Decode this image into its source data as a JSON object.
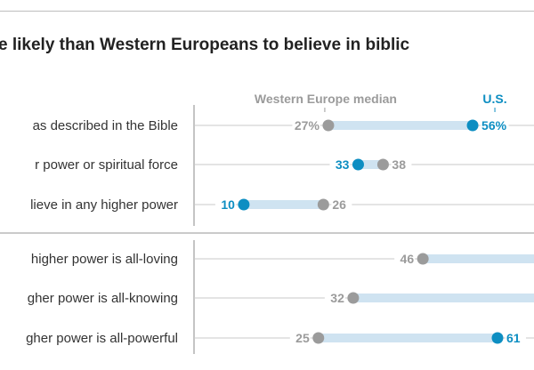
{
  "title": "e likely than Western Europeans to believe in biblic",
  "chart_data": {
    "type": "dot-range",
    "title": "e likely than Western Europeans to believe in biblic",
    "legend": {
      "europe": "Western Europe median",
      "us": "U.S."
    },
    "colors": {
      "europe": "#9b9b9b",
      "us": "#0d8ec2",
      "bar": "#cfe3f1"
    },
    "xlim": [
      0,
      100
    ],
    "groups": [
      {
        "rows": [
          {
            "label": "as described in the Bible",
            "europe": 27,
            "us": 56,
            "europe_text": "27%",
            "us_text": "56%"
          },
          {
            "label": "r power or spiritual force",
            "europe": 38,
            "us": 33,
            "europe_text": "38",
            "us_text": "33"
          },
          {
            "label": "lieve in any higher power",
            "europe": 26,
            "us": 10,
            "europe_text": "26",
            "us_text": "10"
          }
        ]
      },
      {
        "rows": [
          {
            "label": "higher power is all-loving",
            "europe": 46,
            "us": null,
            "europe_text": "46",
            "us_text": null
          },
          {
            "label": "gher power is all-knowing",
            "europe": 32,
            "us": null,
            "europe_text": "32",
            "us_text": null
          },
          {
            "label": "gher power is all-powerful",
            "europe": 25,
            "us": 61,
            "europe_text": "25",
            "us_text": "61"
          }
        ]
      }
    ]
  }
}
